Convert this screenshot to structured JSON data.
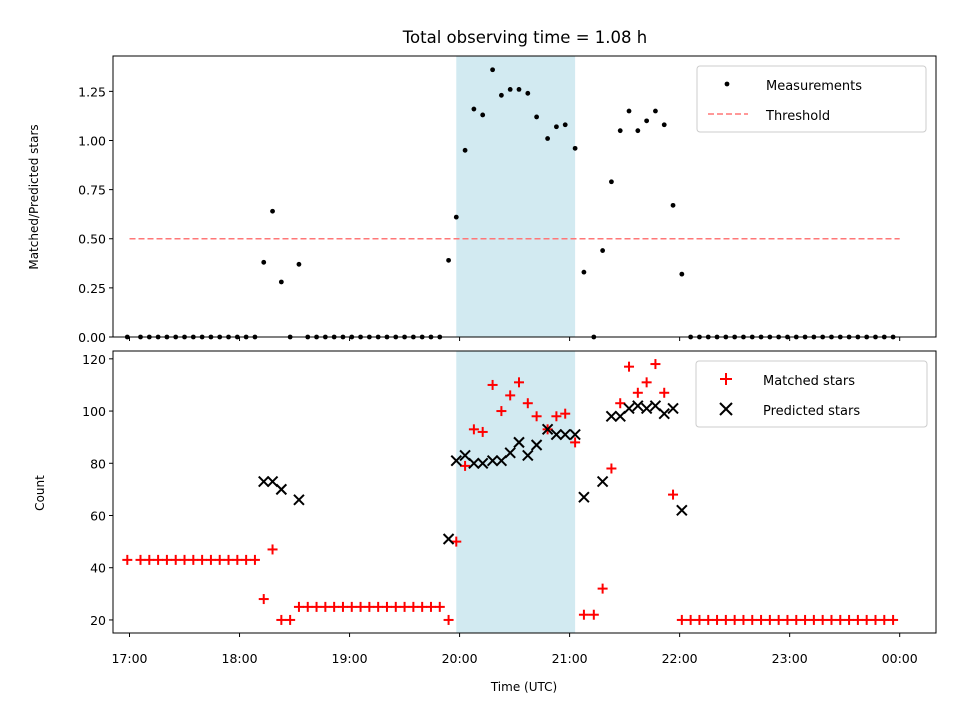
{
  "figure": {
    "title": "Total observing time = 1.08 h"
  },
  "chart_data": [
    {
      "type": "scatter",
      "ylabel": "Matched/Predicted stars",
      "xlabel": "",
      "xlim": [
        16.85,
        24.33
      ],
      "ylim": [
        0,
        1.43
      ],
      "yticks": [
        0.0,
        0.25,
        0.5,
        0.75,
        1.0,
        1.25
      ],
      "ytick_labels": [
        "0.00",
        "0.25",
        "0.50",
        "0.75",
        "1.00",
        "1.25"
      ],
      "shaded_span": {
        "from": 19.97,
        "to": 21.05,
        "color": "#add8e6"
      },
      "legend_position": "top-right",
      "threshold": {
        "name": "Threshold",
        "value": 0.5,
        "from": 17.0,
        "to": 24.0,
        "color": "#ff7777"
      },
      "series": [
        {
          "name": "Measurements",
          "marker": "dot",
          "color": "#000000",
          "x": [
            16.98,
            17.1,
            17.18,
            17.26,
            17.34,
            17.42,
            17.5,
            17.58,
            17.66,
            17.74,
            17.82,
            17.9,
            17.98,
            18.06,
            18.14,
            18.22,
            18.3,
            18.38,
            18.46,
            18.54,
            18.62,
            18.7,
            18.78,
            18.86,
            18.94,
            19.02,
            19.1,
            19.18,
            19.26,
            19.34,
            19.42,
            19.5,
            19.58,
            19.66,
            19.74,
            19.82,
            19.9,
            19.97,
            20.05,
            20.13,
            20.21,
            20.3,
            20.38,
            20.46,
            20.54,
            20.62,
            20.7,
            20.8,
            20.88,
            20.96,
            21.05,
            21.13,
            21.22,
            21.3,
            21.38,
            21.46,
            21.54,
            21.62,
            21.7,
            21.78,
            21.86,
            21.94,
            22.02,
            22.1,
            22.18,
            22.26,
            22.34,
            22.42,
            22.5,
            22.58,
            22.66,
            22.74,
            22.82,
            22.9,
            22.98,
            23.06,
            23.14,
            23.22,
            23.3,
            23.38,
            23.46,
            23.54,
            23.62,
            23.7,
            23.78,
            23.86,
            23.94
          ],
          "y": [
            0,
            0,
            0,
            0,
            0,
            0,
            0,
            0,
            0,
            0,
            0,
            0,
            0,
            0,
            0,
            0.38,
            0.64,
            0.28,
            0,
            0.37,
            0,
            0,
            0,
            0,
            0,
            0,
            0,
            0,
            0,
            0,
            0,
            0,
            0,
            0,
            0,
            0,
            0.39,
            0.61,
            0.95,
            1.16,
            1.13,
            1.36,
            1.23,
            1.26,
            1.26,
            1.24,
            1.12,
            1.01,
            1.07,
            1.08,
            0.96,
            0.33,
            0,
            0.44,
            0.79,
            1.05,
            1.15,
            1.05,
            1.1,
            1.15,
            1.08,
            0.67,
            0.32,
            0,
            0,
            0,
            0,
            0,
            0,
            0,
            0,
            0,
            0,
            0,
            0,
            0,
            0,
            0,
            0,
            0,
            0,
            0,
            0,
            0,
            0,
            0,
            0
          ]
        }
      ]
    },
    {
      "type": "scatter",
      "ylabel": "Count",
      "xlabel": "Time (UTC)",
      "xlim": [
        16.85,
        24.33
      ],
      "ylim": [
        15,
        123
      ],
      "yticks": [
        20,
        40,
        60,
        80,
        100,
        120
      ],
      "ytick_labels": [
        "20",
        "40",
        "60",
        "80",
        "100",
        "120"
      ],
      "xticks": [
        17,
        18,
        19,
        20,
        21,
        22,
        23,
        24
      ],
      "xtick_labels": [
        "17:00",
        "18:00",
        "19:00",
        "20:00",
        "21:00",
        "22:00",
        "23:00",
        "00:00"
      ],
      "shaded_span": {
        "from": 19.97,
        "to": 21.05,
        "color": "#add8e6"
      },
      "legend_position": "top-right",
      "series": [
        {
          "name": "Matched stars",
          "marker": "plus",
          "color": "#ff0000",
          "x": [
            16.98,
            17.1,
            17.18,
            17.26,
            17.34,
            17.42,
            17.5,
            17.58,
            17.66,
            17.74,
            17.82,
            17.9,
            17.98,
            18.06,
            18.14,
            18.22,
            18.3,
            18.38,
            18.46,
            18.54,
            18.62,
            18.7,
            18.78,
            18.86,
            18.94,
            19.02,
            19.1,
            19.18,
            19.26,
            19.34,
            19.42,
            19.5,
            19.58,
            19.66,
            19.74,
            19.82,
            19.9,
            19.97,
            20.05,
            20.13,
            20.21,
            20.3,
            20.38,
            20.46,
            20.54,
            20.62,
            20.7,
            20.8,
            20.88,
            20.96,
            21.05,
            21.13,
            21.22,
            21.3,
            21.38,
            21.46,
            21.54,
            21.62,
            21.7,
            21.78,
            21.86,
            21.94,
            22.02,
            22.1,
            22.18,
            22.26,
            22.34,
            22.42,
            22.5,
            22.58,
            22.66,
            22.74,
            22.82,
            22.9,
            22.98,
            23.06,
            23.14,
            23.22,
            23.3,
            23.38,
            23.46,
            23.54,
            23.62,
            23.7,
            23.78,
            23.86,
            23.94
          ],
          "y": [
            43,
            43,
            43,
            43,
            43,
            43,
            43,
            43,
            43,
            43,
            43,
            43,
            43,
            43,
            43,
            28,
            47,
            20,
            20,
            25,
            25,
            25,
            25,
            25,
            25,
            25,
            25,
            25,
            25,
            25,
            25,
            25,
            25,
            25,
            25,
            25,
            20,
            50,
            79,
            93,
            92,
            110,
            100,
            106,
            111,
            103,
            98,
            93,
            98,
            99,
            88,
            22,
            22,
            32,
            78,
            103,
            117,
            107,
            111,
            118,
            107,
            68,
            20,
            20,
            20,
            20,
            20,
            20,
            20,
            20,
            20,
            20,
            20,
            20,
            20,
            20,
            20,
            20,
            20,
            20,
            20,
            20,
            20,
            20,
            20,
            20,
            20
          ]
        },
        {
          "name": "Predicted stars",
          "marker": "x",
          "color": "#000000",
          "x": [
            18.22,
            18.3,
            18.38,
            18.54,
            19.9,
            19.97,
            20.05,
            20.13,
            20.21,
            20.3,
            20.38,
            20.46,
            20.54,
            20.62,
            20.7,
            20.8,
            20.88,
            20.96,
            21.05,
            21.13,
            21.3,
            21.38,
            21.46,
            21.54,
            21.62,
            21.7,
            21.78,
            21.86,
            21.94,
            22.02
          ],
          "y": [
            73,
            73,
            70,
            66,
            51,
            81,
            83,
            80,
            80,
            81,
            81,
            84,
            88,
            83,
            87,
            93,
            91,
            91,
            91,
            67,
            73,
            98,
            98,
            101,
            102,
            101,
            102,
            99,
            101,
            62
          ]
        }
      ]
    }
  ]
}
